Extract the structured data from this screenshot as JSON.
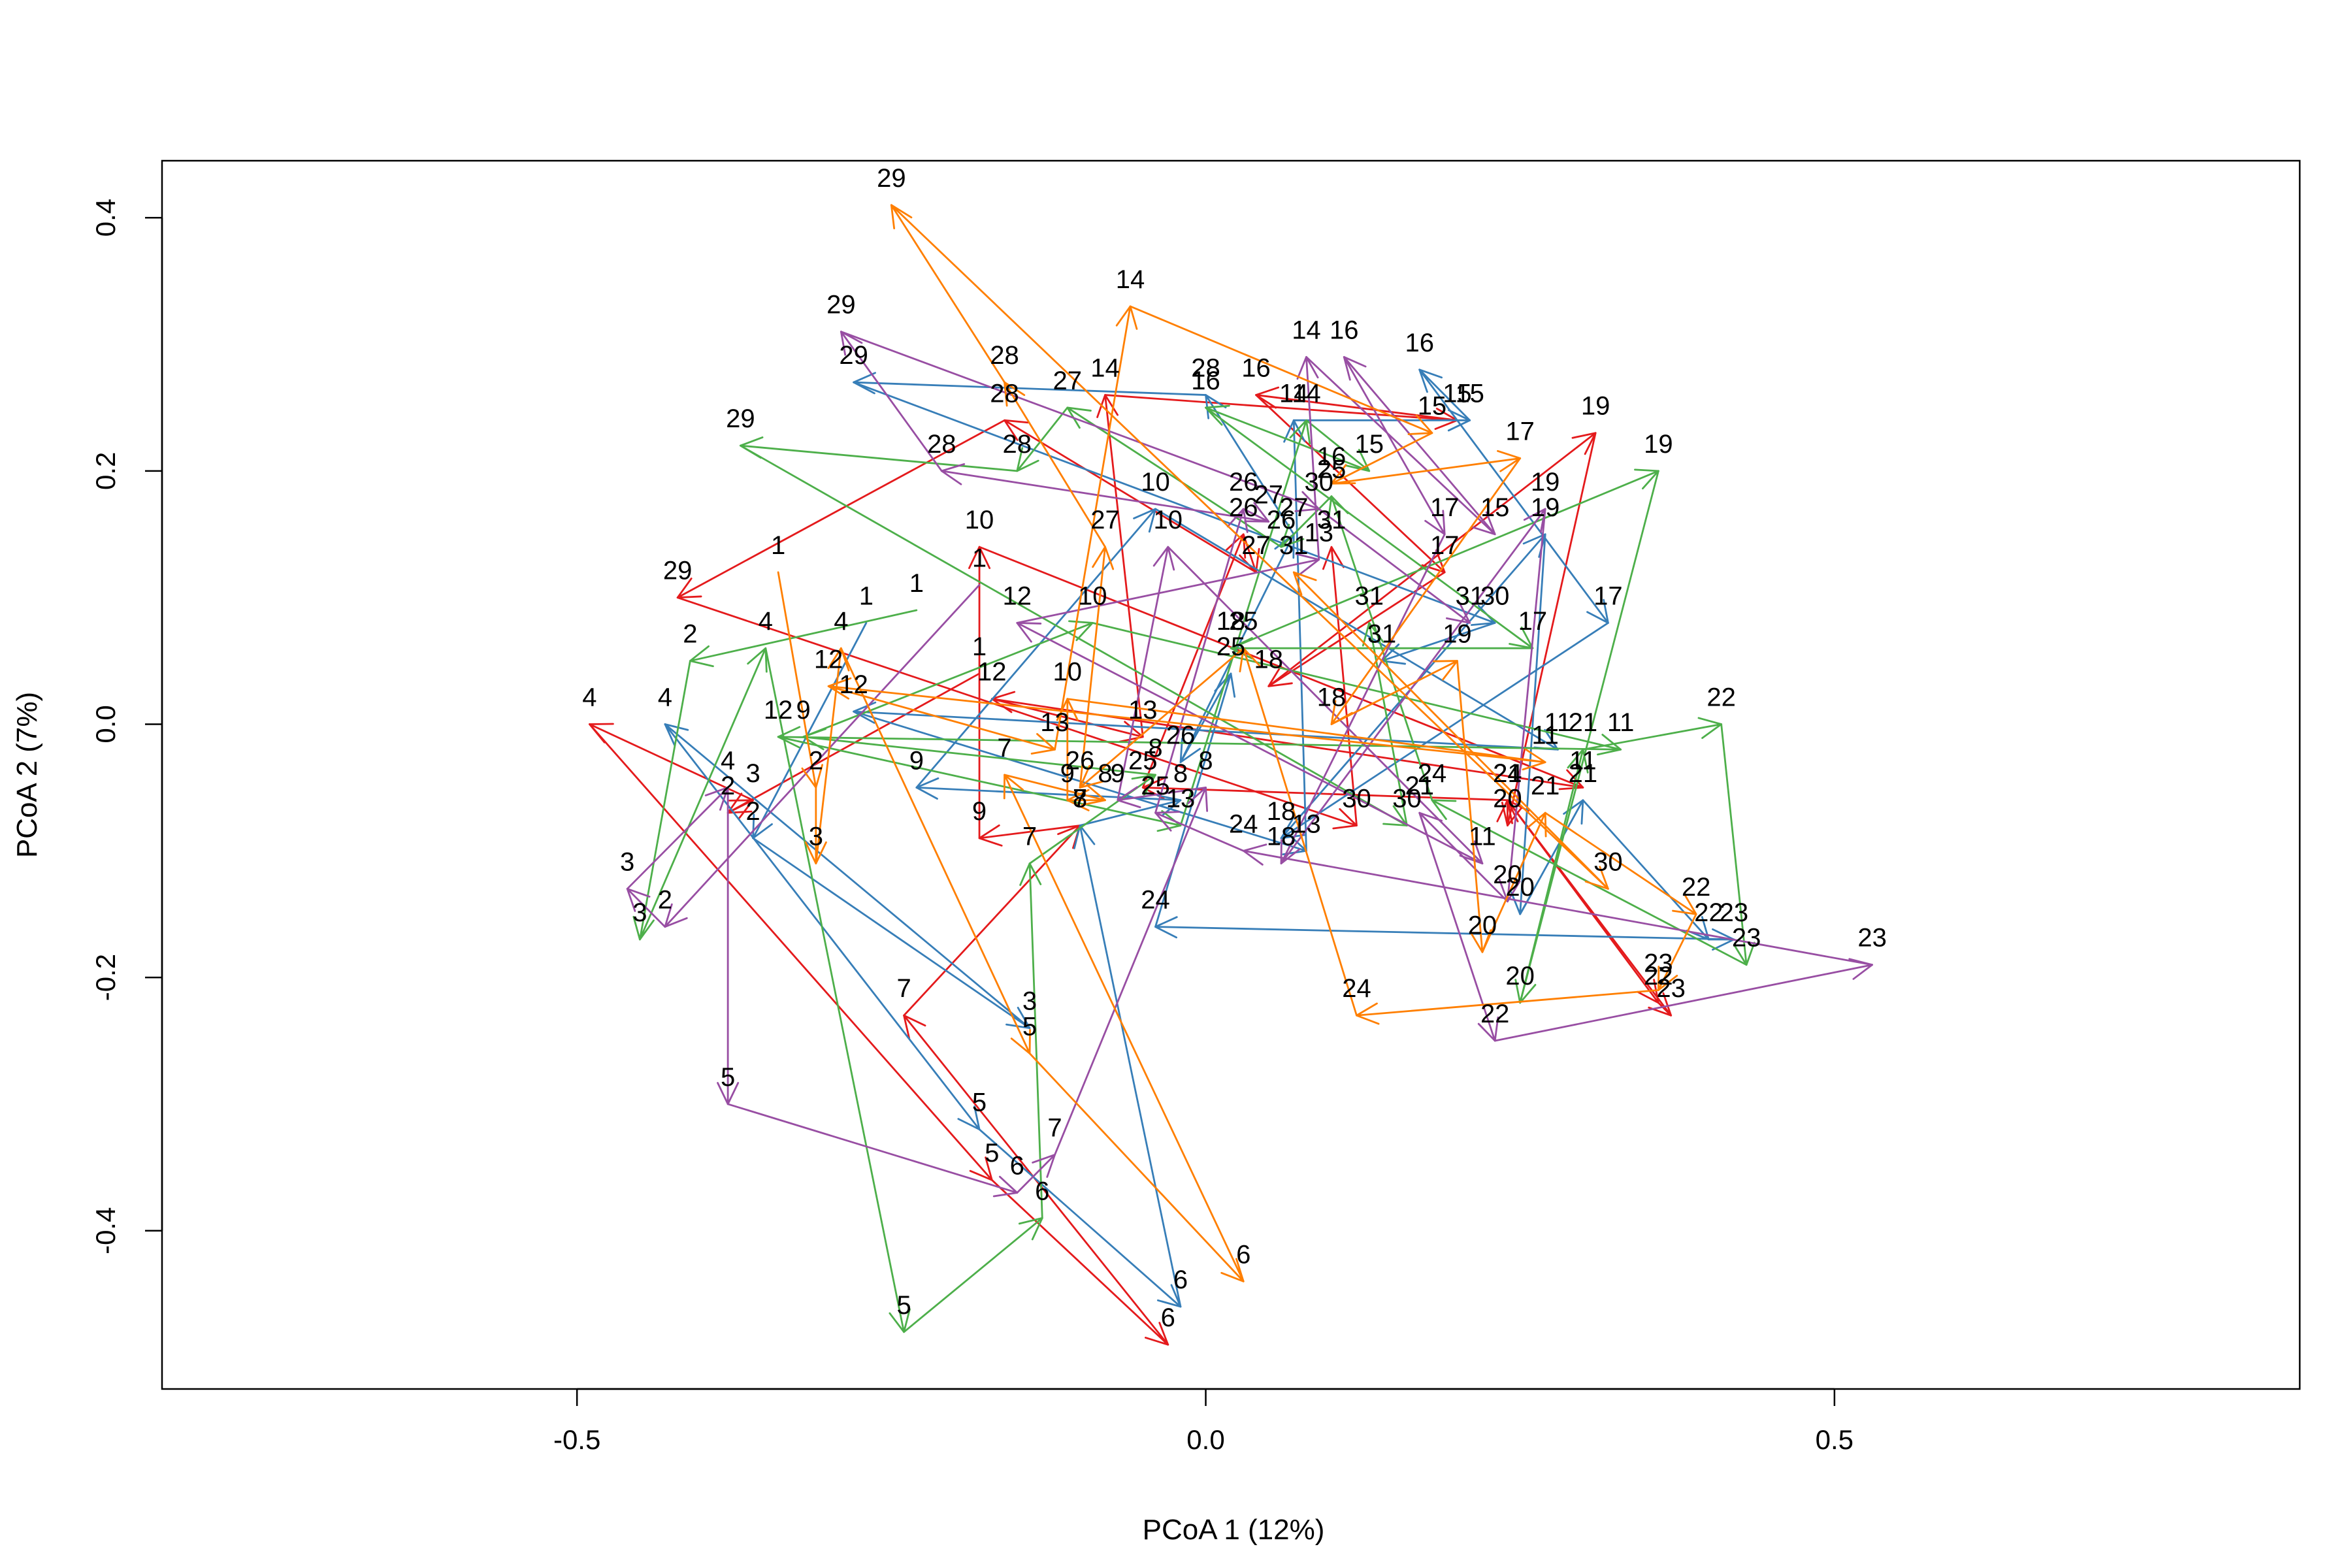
{
  "chart_data": {
    "type": "scatter",
    "title": "",
    "xlabel": "PCoA 1 (12%)",
    "ylabel": "PCoA 2 (7%)",
    "xlim": [
      -0.83,
      0.87
    ],
    "ylim": [
      -0.525,
      0.445
    ],
    "x_ticks": [
      -0.5,
      0.0,
      0.5
    ],
    "x_tick_labels": [
      "-0.5",
      "0.0",
      "0.5"
    ],
    "y_ticks": [
      -0.4,
      -0.2,
      0.0,
      0.2,
      0.4
    ],
    "y_tick_labels": [
      "-0.4",
      "-0.2",
      "0.0",
      "0.2",
      "0.4"
    ],
    "grid": false,
    "legend": "none",
    "colors": {
      "red": "#e41a1c",
      "blue": "#377eb8",
      "green": "#4daf4a",
      "purple": "#984ea3",
      "orange": "#ff7f00"
    },
    "series": [
      {
        "color": "#e41a1c",
        "points": [
          {
            "label": "1",
            "x": -0.18,
            "y": 0.04
          },
          {
            "label": "2",
            "x": -0.38,
            "y": -0.07
          },
          {
            "label": "3",
            "x": -0.36,
            "y": -0.06
          },
          {
            "label": "4",
            "x": -0.49,
            "y": 0.0
          },
          {
            "label": "5",
            "x": -0.17,
            "y": -0.36
          },
          {
            "label": "6",
            "x": -0.03,
            "y": -0.49
          },
          {
            "label": "7",
            "x": -0.24,
            "y": -0.23
          },
          {
            "label": "8",
            "x": -0.1,
            "y": -0.08
          },
          {
            "label": "9",
            "x": -0.18,
            "y": -0.09
          },
          {
            "label": "10",
            "x": -0.18,
            "y": 0.14
          },
          {
            "label": "11",
            "x": 0.3,
            "y": -0.05
          },
          {
            "label": "12",
            "x": -0.17,
            "y": 0.02
          },
          {
            "label": "13",
            "x": -0.05,
            "y": -0.01
          },
          {
            "label": "14",
            "x": -0.08,
            "y": 0.26
          },
          {
            "label": "15",
            "x": 0.2,
            "y": 0.24
          },
          {
            "label": "16",
            "x": 0.04,
            "y": 0.26
          },
          {
            "label": "17",
            "x": 0.19,
            "y": 0.12
          },
          {
            "label": "18",
            "x": 0.05,
            "y": 0.03
          },
          {
            "label": "19",
            "x": 0.31,
            "y": 0.23
          },
          {
            "label": "20",
            "x": 0.24,
            "y": -0.08
          },
          {
            "label": "21",
            "x": 0.24,
            "y": -0.06
          },
          {
            "label": "22",
            "x": 0.36,
            "y": -0.22
          },
          {
            "label": "23",
            "x": 0.37,
            "y": -0.23
          },
          {
            "label": "24",
            "x": 0.24,
            "y": -0.06
          },
          {
            "label": "25",
            "x": -0.05,
            "y": -0.05
          },
          {
            "label": "26",
            "x": 0.03,
            "y": 0.15
          },
          {
            "label": "27",
            "x": 0.04,
            "y": 0.12
          },
          {
            "label": "28",
            "x": -0.16,
            "y": 0.24
          },
          {
            "label": "29",
            "x": -0.42,
            "y": 0.1
          },
          {
            "label": "30",
            "x": 0.12,
            "y": -0.08
          },
          {
            "label": "31",
            "x": 0.1,
            "y": 0.14
          }
        ]
      },
      {
        "color": "#377eb8",
        "points": [
          {
            "label": "1",
            "x": -0.27,
            "y": 0.08
          },
          {
            "label": "2",
            "x": -0.36,
            "y": -0.09
          },
          {
            "label": "3",
            "x": -0.14,
            "y": -0.24
          },
          {
            "label": "4",
            "x": -0.43,
            "y": 0.0
          },
          {
            "label": "5",
            "x": -0.18,
            "y": -0.32
          },
          {
            "label": "6",
            "x": -0.02,
            "y": -0.46
          },
          {
            "label": "7",
            "x": -0.1,
            "y": -0.08
          },
          {
            "label": "8",
            "x": -0.02,
            "y": -0.06
          },
          {
            "label": "9",
            "x": -0.23,
            "y": -0.05
          },
          {
            "label": "10",
            "x": -0.04,
            "y": 0.17
          },
          {
            "label": "11",
            "x": 0.28,
            "y": -0.02
          },
          {
            "label": "12",
            "x": -0.28,
            "y": 0.01
          },
          {
            "label": "13",
            "x": 0.08,
            "y": -0.1
          },
          {
            "label": "14",
            "x": 0.07,
            "y": 0.24
          },
          {
            "label": "15",
            "x": 0.21,
            "y": 0.24
          },
          {
            "label": "16",
            "x": 0.17,
            "y": 0.28
          },
          {
            "label": "17",
            "x": 0.32,
            "y": 0.08
          },
          {
            "label": "18",
            "x": 0.06,
            "y": -0.09
          },
          {
            "label": "19",
            "x": 0.27,
            "y": 0.15
          },
          {
            "label": "20",
            "x": 0.25,
            "y": -0.15
          },
          {
            "label": "21",
            "x": 0.3,
            "y": -0.06
          },
          {
            "label": "22",
            "x": 0.4,
            "y": -0.17
          },
          {
            "label": "23",
            "x": 0.42,
            "y": -0.17
          },
          {
            "label": "24",
            "x": -0.04,
            "y": -0.16
          },
          {
            "label": "25",
            "x": 0.02,
            "y": 0.04
          },
          {
            "label": "26",
            "x": -0.02,
            "y": -0.03
          },
          {
            "label": "27",
            "x": 0.07,
            "y": 0.15
          },
          {
            "label": "28",
            "x": 0.0,
            "y": 0.26
          },
          {
            "label": "29",
            "x": -0.28,
            "y": 0.27
          },
          {
            "label": "30",
            "x": 0.23,
            "y": 0.08
          },
          {
            "label": "31",
            "x": 0.14,
            "y": 0.05
          }
        ]
      },
      {
        "color": "#4daf4a",
        "points": [
          {
            "label": "1",
            "x": -0.23,
            "y": 0.09
          },
          {
            "label": "2",
            "x": -0.41,
            "y": 0.05
          },
          {
            "label": "3",
            "x": -0.45,
            "y": -0.17
          },
          {
            "label": "4",
            "x": -0.35,
            "y": 0.06
          },
          {
            "label": "5",
            "x": -0.24,
            "y": -0.48
          },
          {
            "label": "6",
            "x": -0.13,
            "y": -0.39
          },
          {
            "label": "7",
            "x": -0.14,
            "y": -0.11
          },
          {
            "label": "8",
            "x": -0.04,
            "y": -0.04
          },
          {
            "label": "9",
            "x": -0.32,
            "y": -0.01
          },
          {
            "label": "10",
            "x": -0.09,
            "y": 0.08
          },
          {
            "label": "11",
            "x": 0.33,
            "y": -0.02
          },
          {
            "label": "12",
            "x": -0.34,
            "y": -0.01
          },
          {
            "label": "13",
            "x": -0.02,
            "y": -0.08
          },
          {
            "label": "14",
            "x": 0.08,
            "y": 0.24
          },
          {
            "label": "15",
            "x": 0.13,
            "y": 0.2
          },
          {
            "label": "16",
            "x": 0.0,
            "y": 0.25
          },
          {
            "label": "17",
            "x": 0.26,
            "y": 0.06
          },
          {
            "label": "18",
            "x": 0.02,
            "y": 0.06
          },
          {
            "label": "19",
            "x": 0.36,
            "y": 0.2
          },
          {
            "label": "20",
            "x": 0.25,
            "y": -0.22
          },
          {
            "label": "21",
            "x": 0.3,
            "y": -0.02
          },
          {
            "label": "22",
            "x": 0.41,
            "y": 0.0
          },
          {
            "label": "23",
            "x": 0.43,
            "y": -0.19
          },
          {
            "label": "24",
            "x": 0.18,
            "y": -0.06
          },
          {
            "label": "25",
            "x": 0.1,
            "y": 0.18
          },
          {
            "label": "26",
            "x": 0.06,
            "y": 0.14
          },
          {
            "label": "27",
            "x": -0.11,
            "y": 0.25
          },
          {
            "label": "28",
            "x": -0.15,
            "y": 0.2
          },
          {
            "label": "29",
            "x": -0.37,
            "y": 0.22
          },
          {
            "label": "30",
            "x": 0.16,
            "y": -0.08
          },
          {
            "label": "31",
            "x": 0.13,
            "y": 0.08
          }
        ]
      },
      {
        "color": "#984ea3",
        "points": [
          {
            "label": "1",
            "x": -0.18,
            "y": 0.11
          },
          {
            "label": "2",
            "x": -0.43,
            "y": -0.16
          },
          {
            "label": "3",
            "x": -0.46,
            "y": -0.13
          },
          {
            "label": "4",
            "x": -0.38,
            "y": -0.05
          },
          {
            "label": "5",
            "x": -0.38,
            "y": -0.3
          },
          {
            "label": "6",
            "x": -0.15,
            "y": -0.37
          },
          {
            "label": "7",
            "x": -0.12,
            "y": -0.34
          },
          {
            "label": "8",
            "x": 0.0,
            "y": -0.05
          },
          {
            "label": "9",
            "x": -0.07,
            "y": -0.06
          },
          {
            "label": "10",
            "x": -0.03,
            "y": 0.14
          },
          {
            "label": "11",
            "x": 0.22,
            "y": -0.11
          },
          {
            "label": "12",
            "x": -0.15,
            "y": 0.08
          },
          {
            "label": "13",
            "x": 0.09,
            "y": 0.13
          },
          {
            "label": "14",
            "x": 0.08,
            "y": 0.29
          },
          {
            "label": "15",
            "x": 0.23,
            "y": 0.15
          },
          {
            "label": "16",
            "x": 0.11,
            "y": 0.29
          },
          {
            "label": "17",
            "x": 0.19,
            "y": 0.15
          },
          {
            "label": "18",
            "x": 0.06,
            "y": -0.11
          },
          {
            "label": "19",
            "x": 0.27,
            "y": 0.17
          },
          {
            "label": "20",
            "x": 0.24,
            "y": -0.14
          },
          {
            "label": "21",
            "x": 0.17,
            "y": -0.07
          },
          {
            "label": "22",
            "x": 0.23,
            "y": -0.25
          },
          {
            "label": "23",
            "x": 0.53,
            "y": -0.19
          },
          {
            "label": "24",
            "x": 0.03,
            "y": -0.1
          },
          {
            "label": "25",
            "x": -0.04,
            "y": -0.07
          },
          {
            "label": "26",
            "x": 0.03,
            "y": 0.17
          },
          {
            "label": "27",
            "x": 0.05,
            "y": 0.16
          },
          {
            "label": "28",
            "x": -0.21,
            "y": 0.2
          },
          {
            "label": "29",
            "x": -0.29,
            "y": 0.31
          },
          {
            "label": "30",
            "x": 0.09,
            "y": 0.17
          },
          {
            "label": "31",
            "x": 0.21,
            "y": 0.08
          }
        ]
      },
      {
        "color": "#ff7f00",
        "points": [
          {
            "label": "1",
            "x": -0.34,
            "y": 0.12
          },
          {
            "label": "2",
            "x": -0.31,
            "y": -0.05
          },
          {
            "label": "3",
            "x": -0.31,
            "y": -0.11
          },
          {
            "label": "4",
            "x": -0.29,
            "y": 0.06
          },
          {
            "label": "5",
            "x": -0.14,
            "y": -0.26
          },
          {
            "label": "6",
            "x": 0.03,
            "y": -0.44
          },
          {
            "label": "7",
            "x": -0.16,
            "y": -0.04
          },
          {
            "label": "8",
            "x": -0.08,
            "y": -0.06
          },
          {
            "label": "9",
            "x": -0.11,
            "y": -0.06
          },
          {
            "label": "10",
            "x": -0.11,
            "y": 0.02
          },
          {
            "label": "11",
            "x": 0.27,
            "y": -0.03
          },
          {
            "label": "12",
            "x": -0.3,
            "y": 0.03
          },
          {
            "label": "13",
            "x": -0.12,
            "y": -0.02
          },
          {
            "label": "14",
            "x": -0.06,
            "y": 0.33
          },
          {
            "label": "15",
            "x": 0.18,
            "y": 0.23
          },
          {
            "label": "16",
            "x": 0.1,
            "y": 0.19
          },
          {
            "label": "17",
            "x": 0.25,
            "y": 0.21
          },
          {
            "label": "18",
            "x": 0.1,
            "y": 0.0
          },
          {
            "label": "19",
            "x": 0.2,
            "y": 0.05
          },
          {
            "label": "20",
            "x": 0.22,
            "y": -0.18
          },
          {
            "label": "21",
            "x": 0.27,
            "y": -0.07
          },
          {
            "label": "22",
            "x": 0.39,
            "y": -0.15
          },
          {
            "label": "23",
            "x": 0.36,
            "y": -0.21
          },
          {
            "label": "24",
            "x": 0.12,
            "y": -0.23
          },
          {
            "label": "25",
            "x": 0.03,
            "y": 0.06
          },
          {
            "label": "26",
            "x": -0.1,
            "y": -0.05
          },
          {
            "label": "27",
            "x": -0.08,
            "y": 0.14
          },
          {
            "label": "28",
            "x": -0.16,
            "y": 0.27
          },
          {
            "label": "29",
            "x": -0.25,
            "y": 0.41
          },
          {
            "label": "30",
            "x": 0.32,
            "y": -0.13
          },
          {
            "label": "31",
            "x": 0.07,
            "y": 0.12
          }
        ]
      }
    ]
  }
}
